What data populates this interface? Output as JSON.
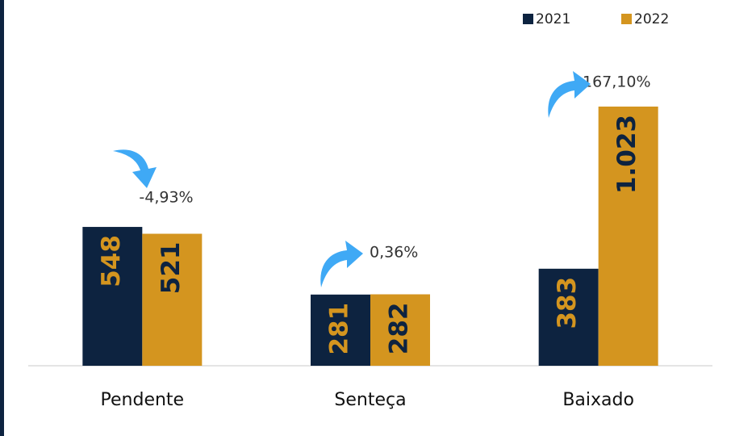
{
  "chart_data": {
    "type": "bar",
    "categories": [
      "Pendente",
      "Senteça",
      "Baixado"
    ],
    "series": [
      {
        "name": "2021",
        "color": "#0d2340",
        "values": [
          548,
          281,
          383
        ]
      },
      {
        "name": "2022",
        "color": "#d4951f",
        "values": [
          521,
          282,
          1023
        ],
        "value_labels": [
          "521",
          "282",
          "1.023"
        ]
      }
    ],
    "annotations": [
      {
        "value": -4.93,
        "label": "-4,93%"
      },
      {
        "value": 0.36,
        "label": "0,36%"
      },
      {
        "value": 167.1,
        "label": "167,10%"
      }
    ],
    "arrow_color": "#3fa9f5",
    "legend": "top-right"
  }
}
